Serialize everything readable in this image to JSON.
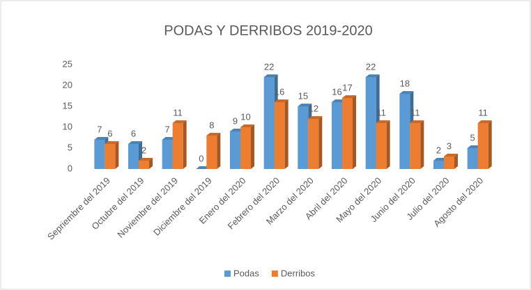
{
  "chart_data": {
    "type": "bar",
    "title": "PODAS Y DERRIBOS  2019-2020",
    "categories": [
      "Sepriembre del 2019",
      "Octubre del 2019",
      "Noviembre del 2019",
      "Diciembre del 2019",
      "Enero del 2020",
      "Febrero del 2020",
      "Marzo del 2020",
      "Abril del 2020",
      "Mayo del 2020",
      "Junio del 2020",
      "Julio del 2020",
      "Agosto del 2020"
    ],
    "series": [
      {
        "name": "Podas",
        "color": "#5b9bd5",
        "values": [
          7,
          6,
          7,
          0,
          9,
          22,
          15,
          16,
          22,
          18,
          2,
          5
        ]
      },
      {
        "name": "Derribos",
        "color": "#ed7d31",
        "values": [
          6,
          2,
          11,
          8,
          10,
          16,
          12,
          17,
          11,
          11,
          3,
          11
        ]
      }
    ],
    "ylim": [
      0,
      25
    ],
    "yticks": [
      0,
      5,
      10,
      15,
      20,
      25
    ],
    "grid": false,
    "legend": "bottom"
  }
}
